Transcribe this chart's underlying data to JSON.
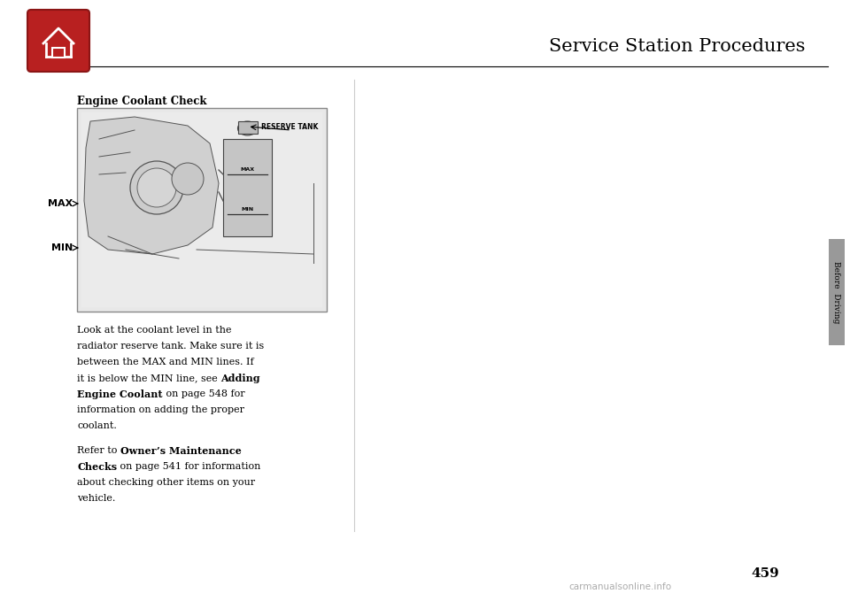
{
  "bg_color": "#ffffff",
  "page_width": 9.6,
  "page_height": 6.88,
  "dpi": 100,
  "title_text": "Service Station Procedures",
  "title_fontsize": 15,
  "title_color": "#000000",
  "home_icon_color": "#b82020",
  "home_icon_border": "#8b1515",
  "section_title": "Engine Coolant Check",
  "section_title_fontsize": 8.5,
  "para1_fontsize": 8.0,
  "para2_fontsize": 8.0,
  "sidebar_color": "#999999",
  "sidebar_text": "Before  Driving",
  "page_number": "459",
  "page_number_fontsize": 11,
  "watermark_text": "carmanualsonline.info",
  "image_bg": "#e8e8e8",
  "image_border": "#888888"
}
